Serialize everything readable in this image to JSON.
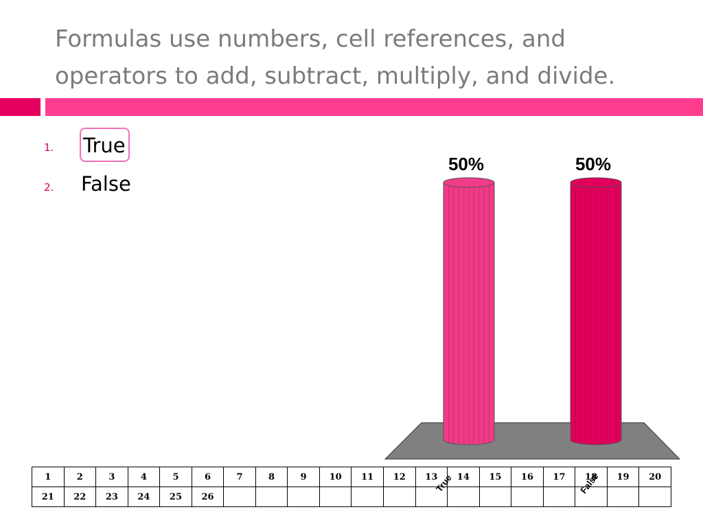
{
  "slide": {
    "title": "Formulas use numbers, cell references, and operators to add, subtract, multiply, and divide."
  },
  "answers": [
    {
      "number": "1.",
      "label": "True",
      "selected": true
    },
    {
      "number": "2.",
      "label": "False",
      "selected": false
    }
  ],
  "colors": {
    "title": "#7b7b7b",
    "accent_dark": "#e5005f",
    "accent_light": "#ff3d8f",
    "bar_true": "#ef3b88",
    "bar_false": "#e0005c",
    "floor": "#808080"
  },
  "chart_data": {
    "type": "bar",
    "style": "3d-cylinder",
    "categories": [
      "True",
      "False"
    ],
    "values": [
      50,
      50
    ],
    "data_labels": [
      "50%",
      "50%"
    ],
    "ylim": [
      0,
      50
    ]
  },
  "response_grid": {
    "rows": [
      [
        "1",
        "2",
        "3",
        "4",
        "5",
        "6",
        "7",
        "8",
        "9",
        "10",
        "11",
        "12",
        "13",
        "14",
        "15",
        "16",
        "17",
        "18",
        "19",
        "20"
      ],
      [
        "21",
        "22",
        "23",
        "24",
        "25",
        "26",
        "",
        "",
        "",
        "",
        "",
        "",
        "",
        "",
        "",
        "",
        "",
        "",
        "",
        ""
      ]
    ]
  }
}
